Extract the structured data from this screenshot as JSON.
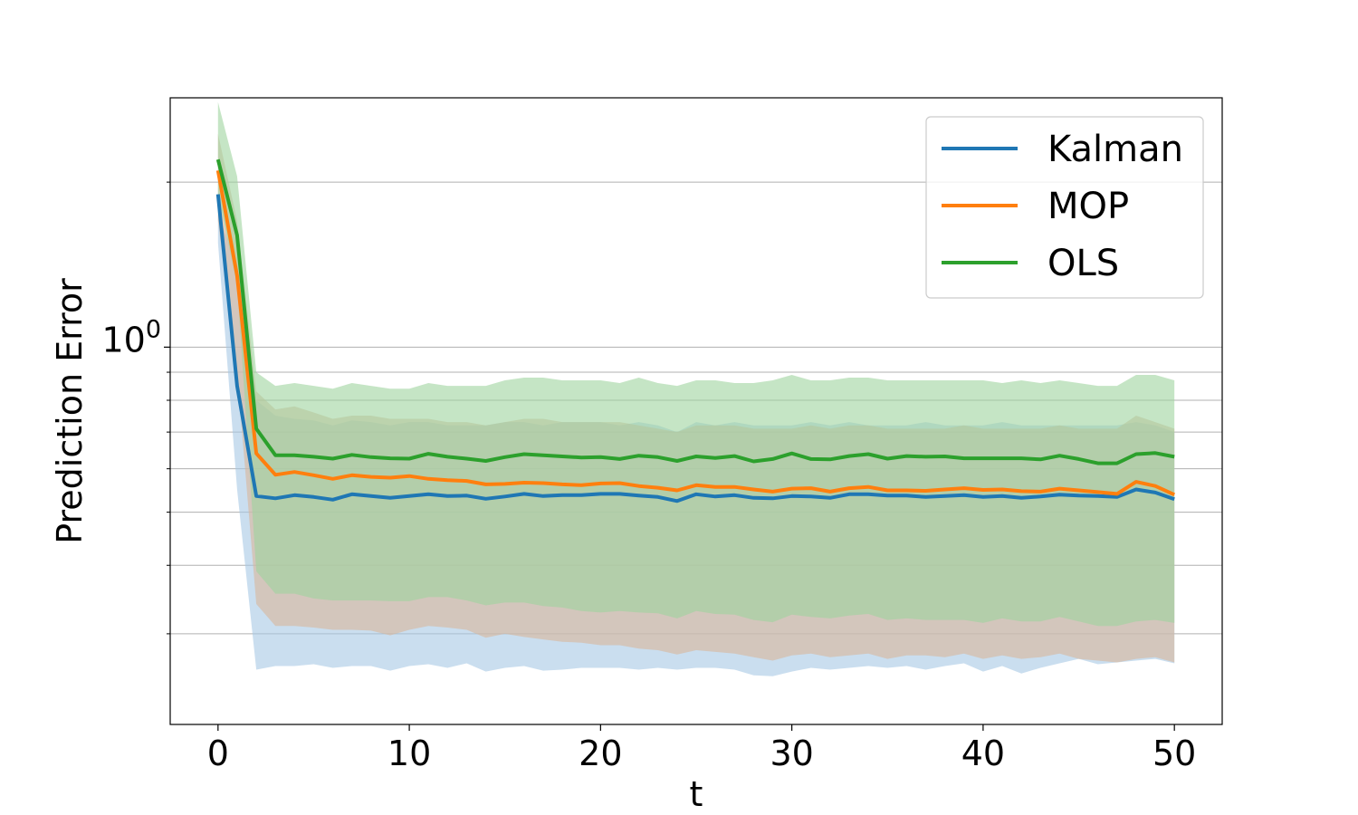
{
  "chart_data": {
    "type": "line",
    "title": "",
    "xlabel": "t",
    "ylabel": "Prediction Error",
    "xlim": [
      -2.5,
      52.5
    ],
    "ylim": [
      0.205,
      2.85
    ],
    "yscale": "log",
    "xticks": [
      0,
      10,
      20,
      30,
      40,
      50
    ],
    "xtick_labels": [
      "0",
      "10",
      "20",
      "30",
      "40",
      "50"
    ],
    "yticks": [
      1.0
    ],
    "ytick_labels": [
      "10",
      "0"
    ],
    "y_minor_ticks": [
      0.3,
      0.4,
      0.5,
      0.6,
      0.7,
      0.8,
      0.9,
      2,
      3,
      4,
      5,
      6,
      7,
      8,
      9
    ],
    "grid": "y-major-and-minor",
    "legend_position": "top-right",
    "x": [
      0,
      1,
      2,
      3,
      4,
      5,
      6,
      7,
      8,
      9,
      10,
      11,
      12,
      13,
      14,
      15,
      16,
      17,
      18,
      19,
      20,
      21,
      22,
      23,
      24,
      25,
      26,
      27,
      28,
      29,
      30,
      31,
      32,
      33,
      34,
      35,
      36,
      37,
      38,
      39,
      40,
      41,
      42,
      43,
      44,
      45,
      46,
      47,
      48,
      49,
      50
    ],
    "series": [
      {
        "name": "Kalman",
        "color": "#1f77b4",
        "band_color": "#a6c8e4",
        "values": [
          1.9,
          0.85,
          0.535,
          0.53,
          0.537,
          0.533,
          0.527,
          0.539,
          0.535,
          0.531,
          0.535,
          0.539,
          0.535,
          0.536,
          0.529,
          0.534,
          0.54,
          0.535,
          0.537,
          0.537,
          0.54,
          0.54,
          0.536,
          0.533,
          0.524,
          0.539,
          0.534,
          0.537,
          0.531,
          0.53,
          0.535,
          0.534,
          0.531,
          0.539,
          0.539,
          0.536,
          0.536,
          0.533,
          0.535,
          0.537,
          0.533,
          0.535,
          0.531,
          0.534,
          0.538,
          0.536,
          0.535,
          0.533,
          0.55,
          0.543,
          0.528
        ],
        "upper": [
          1.75,
          1.42,
          0.8,
          0.75,
          0.74,
          0.735,
          0.72,
          0.735,
          0.73,
          0.72,
          0.73,
          0.73,
          0.72,
          0.72,
          0.72,
          0.73,
          0.73,
          0.72,
          0.73,
          0.73,
          0.73,
          0.72,
          0.73,
          0.72,
          0.7,
          0.73,
          0.72,
          0.73,
          0.72,
          0.72,
          0.72,
          0.73,
          0.72,
          0.73,
          0.72,
          0.72,
          0.72,
          0.73,
          0.72,
          0.72,
          0.72,
          0.73,
          0.72,
          0.72,
          0.72,
          0.72,
          0.72,
          0.72,
          0.73,
          0.72,
          0.7
        ],
        "lower": [
          1.55,
          0.55,
          0.258,
          0.262,
          0.262,
          0.264,
          0.26,
          0.262,
          0.262,
          0.257,
          0.262,
          0.264,
          0.26,
          0.265,
          0.256,
          0.26,
          0.262,
          0.257,
          0.258,
          0.26,
          0.26,
          0.26,
          0.258,
          0.26,
          0.258,
          0.26,
          0.26,
          0.258,
          0.252,
          0.251,
          0.256,
          0.26,
          0.258,
          0.26,
          0.262,
          0.26,
          0.262,
          0.258,
          0.262,
          0.265,
          0.256,
          0.262,
          0.254,
          0.26,
          0.265,
          0.27,
          0.264,
          0.266,
          0.268,
          0.27,
          0.265
        ]
      },
      {
        "name": "MOP",
        "color": "#ff7f0e",
        "band_color": "#d9b59a",
        "values": [
          2.1,
          1.35,
          0.64,
          0.585,
          0.592,
          0.584,
          0.575,
          0.584,
          0.58,
          0.578,
          0.582,
          0.575,
          0.572,
          0.57,
          0.562,
          0.563,
          0.566,
          0.565,
          0.562,
          0.56,
          0.564,
          0.565,
          0.558,
          0.554,
          0.548,
          0.56,
          0.556,
          0.556,
          0.55,
          0.545,
          0.552,
          0.553,
          0.545,
          0.553,
          0.556,
          0.548,
          0.548,
          0.547,
          0.55,
          0.553,
          0.549,
          0.55,
          0.546,
          0.545,
          0.552,
          0.548,
          0.544,
          0.54,
          0.568,
          0.558,
          0.538
        ],
        "upper": [
          2.45,
          1.7,
          0.83,
          0.77,
          0.78,
          0.76,
          0.74,
          0.75,
          0.75,
          0.74,
          0.74,
          0.74,
          0.73,
          0.73,
          0.72,
          0.73,
          0.74,
          0.74,
          0.73,
          0.73,
          0.73,
          0.73,
          0.72,
          0.71,
          0.7,
          0.72,
          0.72,
          0.72,
          0.71,
          0.71,
          0.71,
          0.72,
          0.71,
          0.72,
          0.72,
          0.71,
          0.71,
          0.71,
          0.71,
          0.72,
          0.71,
          0.71,
          0.71,
          0.71,
          0.72,
          0.71,
          0.71,
          0.71,
          0.75,
          0.73,
          0.71
        ],
        "lower": [
          1.7,
          0.9,
          0.34,
          0.31,
          0.31,
          0.308,
          0.305,
          0.305,
          0.304,
          0.298,
          0.305,
          0.31,
          0.308,
          0.305,
          0.295,
          0.3,
          0.296,
          0.293,
          0.29,
          0.289,
          0.286,
          0.286,
          0.282,
          0.28,
          0.275,
          0.28,
          0.278,
          0.276,
          0.272,
          0.268,
          0.274,
          0.276,
          0.272,
          0.274,
          0.276,
          0.27,
          0.274,
          0.274,
          0.272,
          0.276,
          0.27,
          0.274,
          0.27,
          0.272,
          0.276,
          0.27,
          0.268,
          0.266,
          0.27,
          0.272,
          0.266
        ]
      },
      {
        "name": "OLS",
        "color": "#2ca02c",
        "band_color": "#9fd49f",
        "values": [
          2.2,
          1.6,
          0.71,
          0.635,
          0.635,
          0.631,
          0.626,
          0.636,
          0.63,
          0.627,
          0.626,
          0.639,
          0.631,
          0.626,
          0.62,
          0.63,
          0.638,
          0.635,
          0.632,
          0.629,
          0.63,
          0.625,
          0.634,
          0.63,
          0.62,
          0.632,
          0.628,
          0.633,
          0.619,
          0.625,
          0.64,
          0.625,
          0.624,
          0.633,
          0.638,
          0.626,
          0.633,
          0.631,
          0.632,
          0.627,
          0.627,
          0.627,
          0.627,
          0.624,
          0.634,
          0.625,
          0.614,
          0.614,
          0.638,
          0.641,
          0.631
        ],
        "upper": [
          2.8,
          2.05,
          0.9,
          0.85,
          0.86,
          0.85,
          0.84,
          0.86,
          0.85,
          0.84,
          0.84,
          0.86,
          0.85,
          0.85,
          0.85,
          0.87,
          0.88,
          0.88,
          0.87,
          0.87,
          0.87,
          0.86,
          0.88,
          0.86,
          0.85,
          0.87,
          0.87,
          0.86,
          0.86,
          0.87,
          0.89,
          0.87,
          0.87,
          0.88,
          0.88,
          0.87,
          0.87,
          0.87,
          0.87,
          0.87,
          0.87,
          0.86,
          0.87,
          0.86,
          0.87,
          0.86,
          0.85,
          0.85,
          0.89,
          0.89,
          0.87
        ],
        "lower": [
          1.9,
          1.3,
          0.39,
          0.355,
          0.355,
          0.348,
          0.345,
          0.345,
          0.345,
          0.344,
          0.344,
          0.35,
          0.35,
          0.345,
          0.338,
          0.342,
          0.342,
          0.337,
          0.335,
          0.33,
          0.328,
          0.33,
          0.328,
          0.327,
          0.32,
          0.33,
          0.326,
          0.325,
          0.318,
          0.315,
          0.325,
          0.322,
          0.32,
          0.324,
          0.326,
          0.318,
          0.32,
          0.318,
          0.318,
          0.318,
          0.314,
          0.32,
          0.316,
          0.316,
          0.322,
          0.316,
          0.31,
          0.31,
          0.316,
          0.318,
          0.314
        ]
      }
    ]
  }
}
